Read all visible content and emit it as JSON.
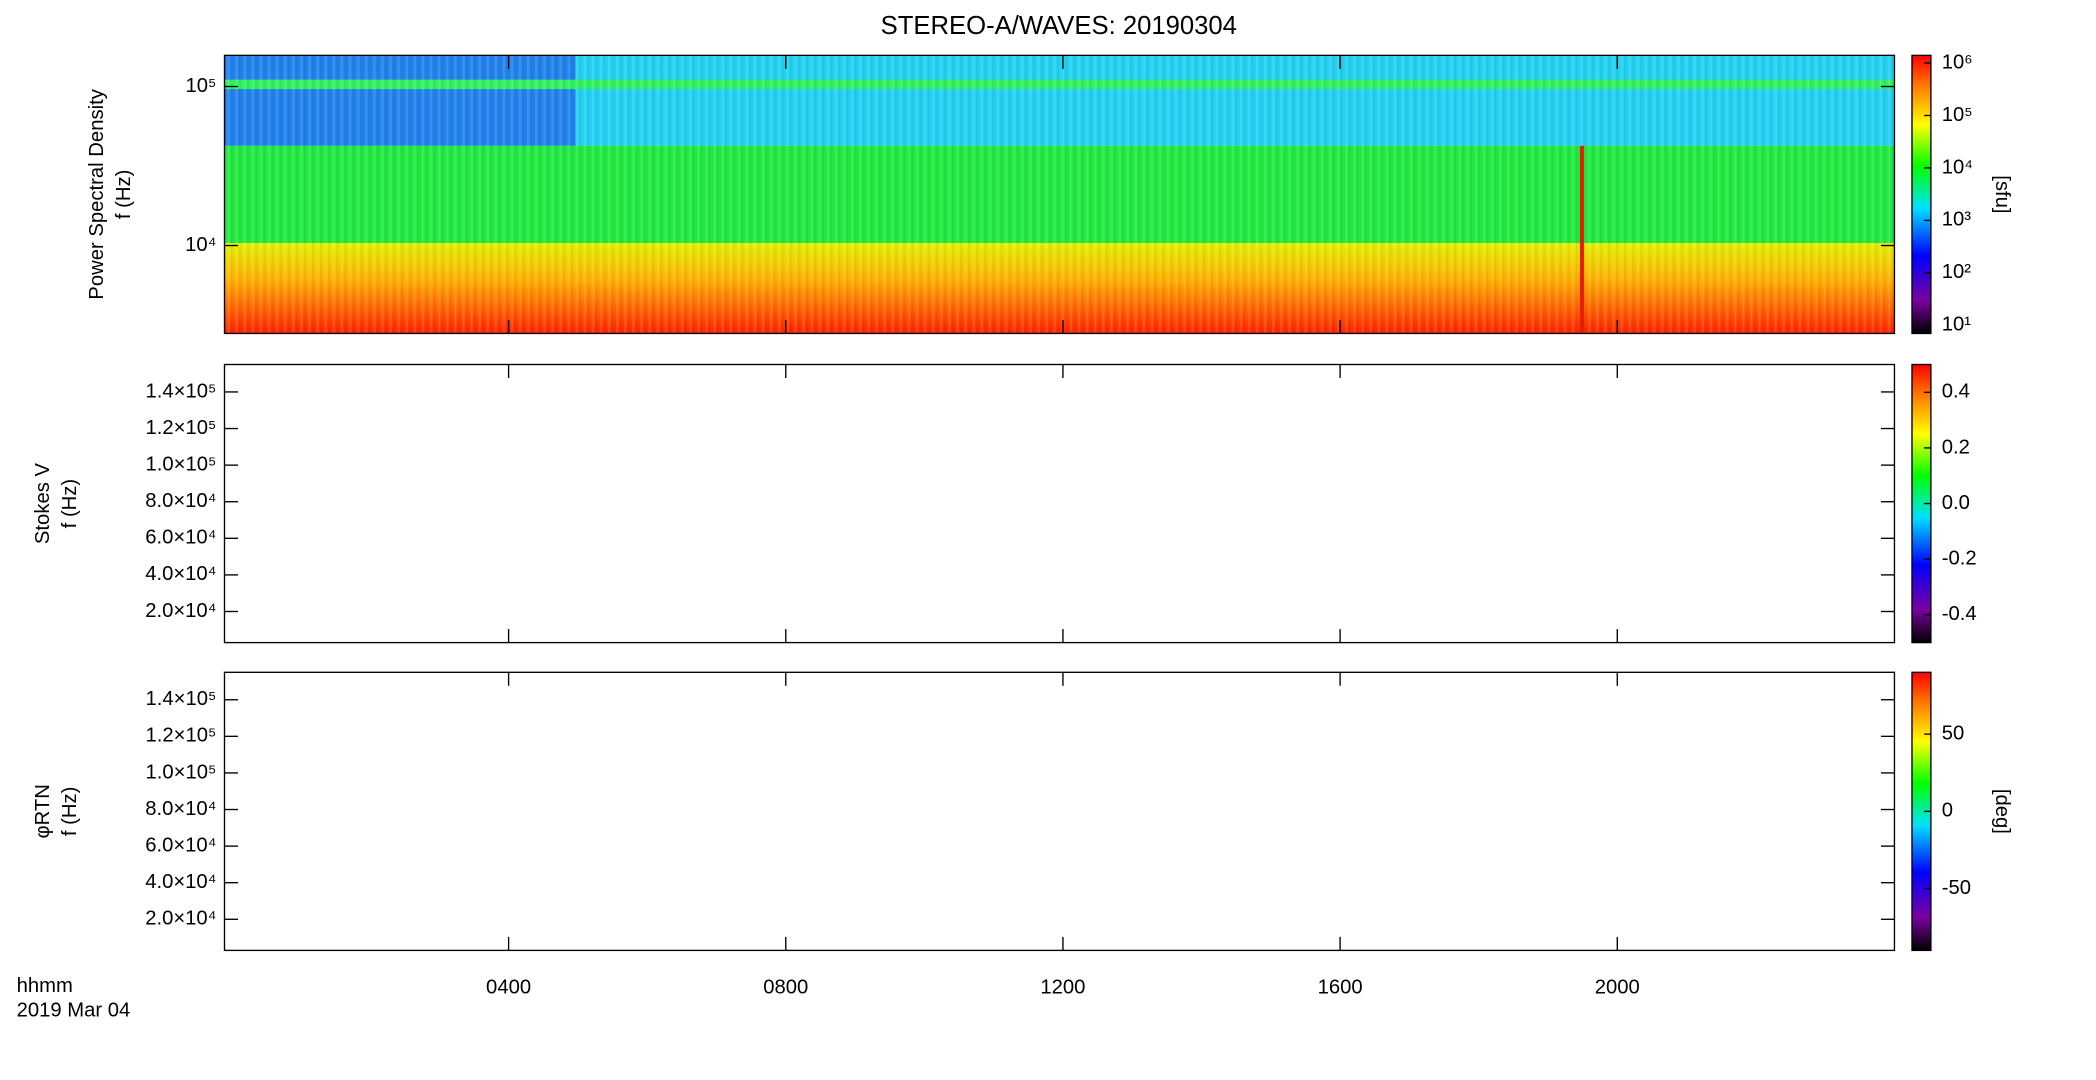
{
  "title": "STEREO-A/WAVES: 20190304",
  "chart_data": [
    {
      "type": "heatmap",
      "ylabel": [
        "Power Spectral Density",
        "f (Hz)"
      ],
      "ylog": true,
      "ylim": [
        2800,
        157000
      ],
      "yticks": [
        {
          "value": 10000,
          "label": "10⁴"
        },
        {
          "value": 100000,
          "label": "10⁵"
        }
      ],
      "zlog": true,
      "zlim": [
        7,
        1400000
      ],
      "zticks": [
        {
          "value": 10,
          "label": "10¹"
        },
        {
          "value": 100,
          "label": "10²"
        },
        {
          "value": 1000,
          "label": "10³"
        },
        {
          "value": 10000,
          "label": "10⁴"
        },
        {
          "value": 100000,
          "label": "10⁵"
        },
        {
          "value": 1000000,
          "label": "10⁶"
        }
      ],
      "zlabel": "[sfu]"
    },
    {
      "type": "heatmap",
      "ylabel": [
        "Stokes V",
        "f (Hz)"
      ],
      "ylim": [
        3000,
        155000
      ],
      "yticks": [
        {
          "value": 20000,
          "label": "2.0×10⁴"
        },
        {
          "value": 40000,
          "label": "4.0×10⁴"
        },
        {
          "value": 60000,
          "label": "6.0×10⁴"
        },
        {
          "value": 80000,
          "label": "8.0×10⁴"
        },
        {
          "value": 100000,
          "label": "1.0×10⁵"
        },
        {
          "value": 120000,
          "label": "1.2×10⁵"
        },
        {
          "value": 140000,
          "label": "1.4×10⁵"
        }
      ],
      "zlim": [
        -0.5,
        0.5
      ],
      "zticks": [
        -0.4,
        -0.2,
        {
          "value": 0,
          "label": "0.0"
        },
        0.2,
        0.4
      ]
    },
    {
      "type": "heatmap",
      "ylabel": [
        "φRTN",
        "f (Hz)"
      ],
      "ylim": [
        3000,
        155000
      ],
      "yticks": [
        {
          "value": 20000,
          "label": "2.0×10⁴"
        },
        {
          "value": 40000,
          "label": "4.0×10⁴"
        },
        {
          "value": 60000,
          "label": "6.0×10⁴"
        },
        {
          "value": 80000,
          "label": "8.0×10⁴"
        },
        {
          "value": 100000,
          "label": "1.0×10⁵"
        },
        {
          "value": 120000,
          "label": "1.2×10⁵"
        },
        {
          "value": 140000,
          "label": "1.4×10⁵"
        }
      ],
      "zlim": [
        -90,
        90
      ],
      "zticks": [
        -50,
        0,
        50
      ],
      "zlabel": "[deg]",
      "xlim": [
        -0.1,
        24
      ],
      "xticks": [
        {
          "value": 4,
          "label": "0400"
        },
        {
          "value": 8,
          "label": "0800"
        },
        {
          "value": 12,
          "label": "1200"
        },
        {
          "value": 16,
          "label": "1600"
        },
        {
          "value": 20,
          "label": "2000"
        }
      ],
      "xlabel": "hhmm",
      "date": "2019 Mar 04"
    }
  ]
}
